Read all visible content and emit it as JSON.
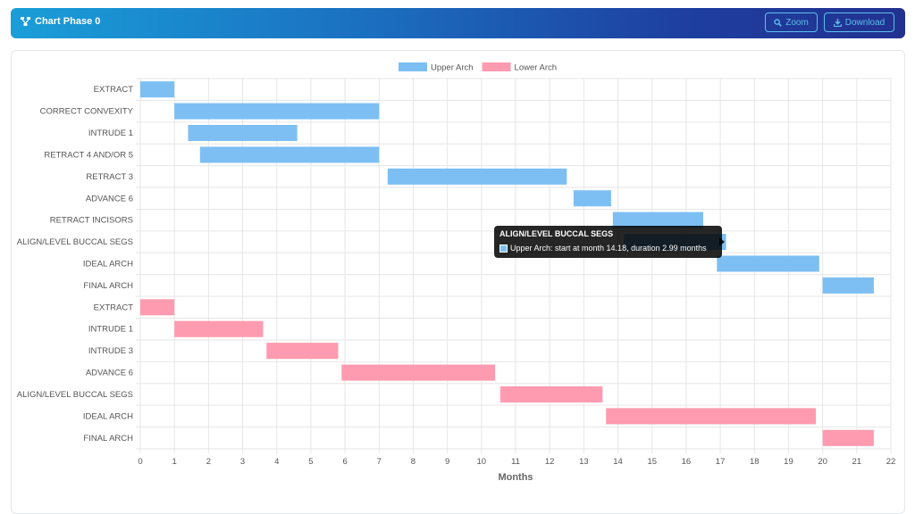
{
  "header": {
    "title": "Chart Phase 0",
    "zoom_label": "Zoom",
    "download_label": "Download"
  },
  "tooltip": {
    "title": "ALIGN/LEVEL BUCCAL SEGS",
    "body": "Upper Arch: start at month 14.18, duration 2.99 months"
  },
  "colors": {
    "upper": "#7dbff3",
    "lower": "#ff9bb0"
  },
  "chart_data": {
    "type": "bar",
    "orientation": "horizontal-gantt",
    "xlabel": "Months",
    "xlim": [
      0,
      22
    ],
    "xticks": [
      0,
      1,
      2,
      3,
      4,
      5,
      6,
      7,
      8,
      9,
      10,
      11,
      12,
      13,
      14,
      15,
      16,
      17,
      18,
      19,
      20,
      21,
      22
    ],
    "grid": true,
    "legend_position": "top-center",
    "categories": [
      "EXTRACT",
      "CORRECT CONVEXITY",
      "INTRUDE 1",
      "RETRACT 4 AND/OR 5",
      "RETRACT 3",
      "ADVANCE 6",
      "RETRACT INCISORS",
      "ALIGN/LEVEL BUCCAL SEGS",
      "IDEAL ARCH",
      "FINAL ARCH",
      "EXTRACT",
      "INTRUDE 1",
      "INTRUDE 3",
      "ADVANCE 6",
      "ALIGN/LEVEL BUCCAL SEGS",
      "IDEAL ARCH",
      "FINAL ARCH"
    ],
    "series": [
      {
        "name": "Upper Arch",
        "bars": [
          {
            "row": 0,
            "start": 0.0,
            "end": 1.0
          },
          {
            "row": 1,
            "start": 1.0,
            "end": 7.0
          },
          {
            "row": 2,
            "start": 1.4,
            "end": 4.6
          },
          {
            "row": 3,
            "start": 1.75,
            "end": 7.0
          },
          {
            "row": 4,
            "start": 7.25,
            "end": 12.5
          },
          {
            "row": 5,
            "start": 12.7,
            "end": 13.8
          },
          {
            "row": 6,
            "start": 13.85,
            "end": 16.5
          },
          {
            "row": 7,
            "start": 14.18,
            "end": 17.17
          },
          {
            "row": 8,
            "start": 16.9,
            "end": 19.9
          },
          {
            "row": 9,
            "start": 20.0,
            "end": 21.5
          }
        ]
      },
      {
        "name": "Lower Arch",
        "bars": [
          {
            "row": 10,
            "start": 0.0,
            "end": 1.0
          },
          {
            "row": 11,
            "start": 1.0,
            "end": 3.6
          },
          {
            "row": 12,
            "start": 3.7,
            "end": 5.8
          },
          {
            "row": 13,
            "start": 5.9,
            "end": 10.4
          },
          {
            "row": 14,
            "start": 10.55,
            "end": 13.55
          },
          {
            "row": 15,
            "start": 13.65,
            "end": 19.8
          },
          {
            "row": 16,
            "start": 20.0,
            "end": 21.5
          }
        ]
      }
    ]
  }
}
